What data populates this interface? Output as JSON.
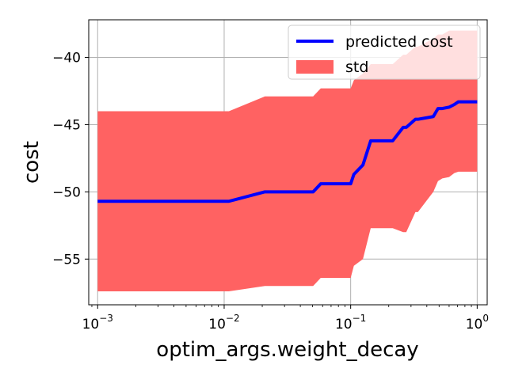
{
  "chart_data": {
    "type": "line",
    "title": "",
    "xlabel": "optim_args.weight_decay",
    "ylabel": "cost",
    "xscale": "log",
    "xlim": [
      0.00085,
      1.2
    ],
    "ylim": [
      -58.4,
      -37.2
    ],
    "xticks": [
      {
        "value": 0.001,
        "base": "10",
        "exp": "−3"
      },
      {
        "value": 0.01,
        "base": "10",
        "exp": "−2"
      },
      {
        "value": 0.1,
        "base": "10",
        "exp": "−1"
      },
      {
        "value": 1,
        "base": "10",
        "exp": "0"
      }
    ],
    "yticks": [
      {
        "value": -40,
        "label": "−40"
      },
      {
        "value": -45,
        "label": "−45"
      },
      {
        "value": -50,
        "label": "−50"
      },
      {
        "value": -55,
        "label": "−55"
      }
    ],
    "grid": true,
    "legend_position": "top-right",
    "series": [
      {
        "name": "predicted cost",
        "kind": "line",
        "color": "#0000ff",
        "x": [
          0.001,
          0.0109,
          0.021,
          0.0505,
          0.058,
          0.1,
          0.106,
          0.125,
          0.144,
          0.2,
          0.215,
          0.26,
          0.275,
          0.325,
          0.34,
          0.45,
          0.49,
          0.53,
          0.6,
          0.66,
          0.71,
          1.0
        ],
        "y": [
          -50.7,
          -50.7,
          -50.0,
          -50.0,
          -49.4,
          -49.4,
          -48.7,
          -48.0,
          -46.2,
          -46.2,
          -46.2,
          -45.2,
          -45.2,
          -44.6,
          -44.6,
          -44.4,
          -43.8,
          -43.8,
          -43.7,
          -43.5,
          -43.3,
          -43.3
        ]
      },
      {
        "name": "std",
        "kind": "band",
        "color": "#ff6262",
        "x": [
          0.001,
          0.0109,
          0.021,
          0.0505,
          0.058,
          0.1,
          0.106,
          0.125,
          0.144,
          0.2,
          0.215,
          0.26,
          0.275,
          0.325,
          0.34,
          0.45,
          0.49,
          0.53,
          0.6,
          0.66,
          0.71,
          1.0
        ],
        "upper": [
          -44.0,
          -44.0,
          -42.9,
          -42.9,
          -42.3,
          -42.3,
          -41.7,
          -41.2,
          -40.5,
          -40.5,
          -40.5,
          -39.8,
          -39.8,
          -39.2,
          -39.2,
          -38.6,
          -38.3,
          -38.3,
          -38.0,
          -38.0,
          -38.0,
          -38.0
        ],
        "lower": [
          -57.4,
          -57.4,
          -57.0,
          -57.0,
          -56.4,
          -56.4,
          -55.5,
          -55.0,
          -52.7,
          -52.7,
          -52.7,
          -53.0,
          -53.0,
          -51.5,
          -51.5,
          -50.0,
          -49.2,
          -49.0,
          -48.9,
          -48.6,
          -48.5,
          -48.5
        ]
      }
    ]
  }
}
